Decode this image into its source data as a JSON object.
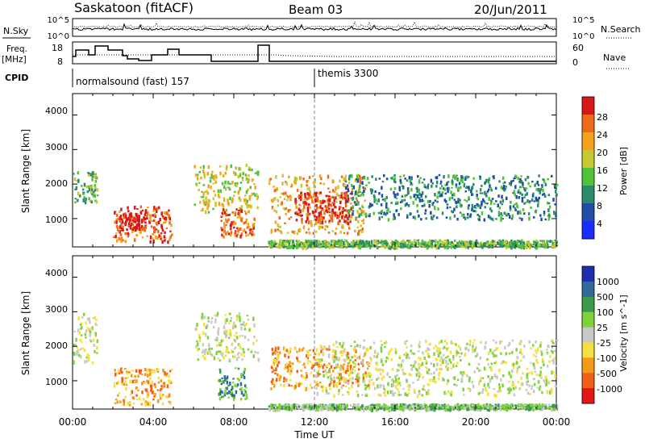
{
  "header": {
    "title": "Saskatoon (fitACF)",
    "beam": "Beam 03",
    "date": "20/Jun/2011"
  },
  "noise_panel": {
    "left_label": "N.Sky",
    "right_label": "N.Search",
    "left_ticks": [
      "10^5",
      "10^0"
    ],
    "right_ticks": [
      "10^5",
      "10^0"
    ]
  },
  "freq_panel": {
    "left_label_line1": "Freq.",
    "left_label_line2": "[MHz]",
    "right_label": "Nave",
    "left_ticks": [
      "18",
      "8"
    ],
    "right_ticks": [
      "60",
      "0"
    ]
  },
  "cpid": {
    "label": "CPID",
    "modes": [
      {
        "name": "normalsound (fast) 157",
        "start_hour": 0
      },
      {
        "name": "themis 3300",
        "start_hour": 12
      }
    ]
  },
  "x_axis": {
    "label": "Time UT",
    "tick_labels": [
      "00:00",
      "04:00",
      "08:00",
      "12:00",
      "16:00",
      "20:00",
      "00:00"
    ],
    "range_hours": [
      0,
      24
    ]
  },
  "chart_data": [
    {
      "type": "heatmap",
      "name": "power",
      "xlabel": "Time UT",
      "ylabel": "Slant Range [km]",
      "y_ticks": [
        "1000",
        "2000",
        "3000",
        "4000"
      ],
      "ylim": [
        180,
        4620
      ],
      "colorbar": {
        "label": "Power [dB]",
        "tick_labels": [
          "4",
          "8",
          "12",
          "16",
          "20",
          "24",
          "28"
        ],
        "colors": [
          "#1a2cff",
          "#1f4ea8",
          "#2a8a6a",
          "#52c23a",
          "#c8c832",
          "#f5a21b",
          "#ee6a1a",
          "#d81818"
        ]
      },
      "data_gaps_hours": [
        [
          1.25,
          2.0
        ],
        [
          5.05,
          6.0
        ],
        [
          9.3,
          9.65
        ]
      ],
      "echo_regions": [
        {
          "t0": 0.0,
          "t1": 1.2,
          "r0": 1500,
          "r1": 2400,
          "level": 3
        },
        {
          "t0": 2.0,
          "t1": 4.9,
          "r0": 350,
          "r1": 1400,
          "level": 6
        },
        {
          "t0": 2.3,
          "t1": 3.6,
          "r0": 700,
          "r1": 1200,
          "level": 7
        },
        {
          "t0": 6.0,
          "t1": 9.2,
          "r0": 1200,
          "r1": 2600,
          "level": 4
        },
        {
          "t0": 7.3,
          "t1": 9.0,
          "r0": 500,
          "r1": 1300,
          "level": 6
        },
        {
          "t0": 9.7,
          "t1": 14.5,
          "r0": 600,
          "r1": 2300,
          "level": 5
        },
        {
          "t0": 11.0,
          "t1": 13.8,
          "r0": 900,
          "r1": 1800,
          "level": 7
        },
        {
          "t0": 13.5,
          "t1": 24.0,
          "r0": 1000,
          "r1": 2300,
          "level": 2
        },
        {
          "t0": 9.7,
          "t1": 24.0,
          "r0": 200,
          "r1": 400,
          "level": 3
        }
      ]
    },
    {
      "type": "heatmap",
      "name": "velocity",
      "xlabel": "Time UT",
      "ylabel": "Slant Range [km]",
      "y_ticks": [
        "1000",
        "2000",
        "3000",
        "4000"
      ],
      "ylim": [
        180,
        4620
      ],
      "colorbar": {
        "label": "Velocity [m s^-1]",
        "tick_labels": [
          "1000",
          "500",
          "100",
          "25",
          "-25",
          "-100",
          "-500",
          "-1000"
        ],
        "colors": [
          "#1b2eb0",
          "#2f6b9a",
          "#3a9c4a",
          "#7fd23a",
          "#c8c8c8",
          "#f5e040",
          "#f59a18",
          "#f06018",
          "#e01818"
        ]
      },
      "echo_regions": [
        {
          "t0": 0.0,
          "t1": 1.2,
          "r0": 1500,
          "r1": 3000,
          "level": 4
        },
        {
          "t0": 2.0,
          "t1": 4.9,
          "r0": 350,
          "r1": 1400,
          "level": 6
        },
        {
          "t0": 6.0,
          "t1": 9.2,
          "r0": 1600,
          "r1": 3000,
          "level": 4
        },
        {
          "t0": 7.2,
          "t1": 8.6,
          "r0": 500,
          "r1": 1400,
          "level": 2
        },
        {
          "t0": 9.8,
          "t1": 14.7,
          "r0": 800,
          "r1": 2000,
          "level": 6
        },
        {
          "t0": 12.0,
          "t1": 24.0,
          "r0": 600,
          "r1": 2200,
          "level": 4
        },
        {
          "t0": 9.7,
          "t1": 24.0,
          "r0": 200,
          "r1": 350,
          "level": 3
        }
      ]
    }
  ]
}
